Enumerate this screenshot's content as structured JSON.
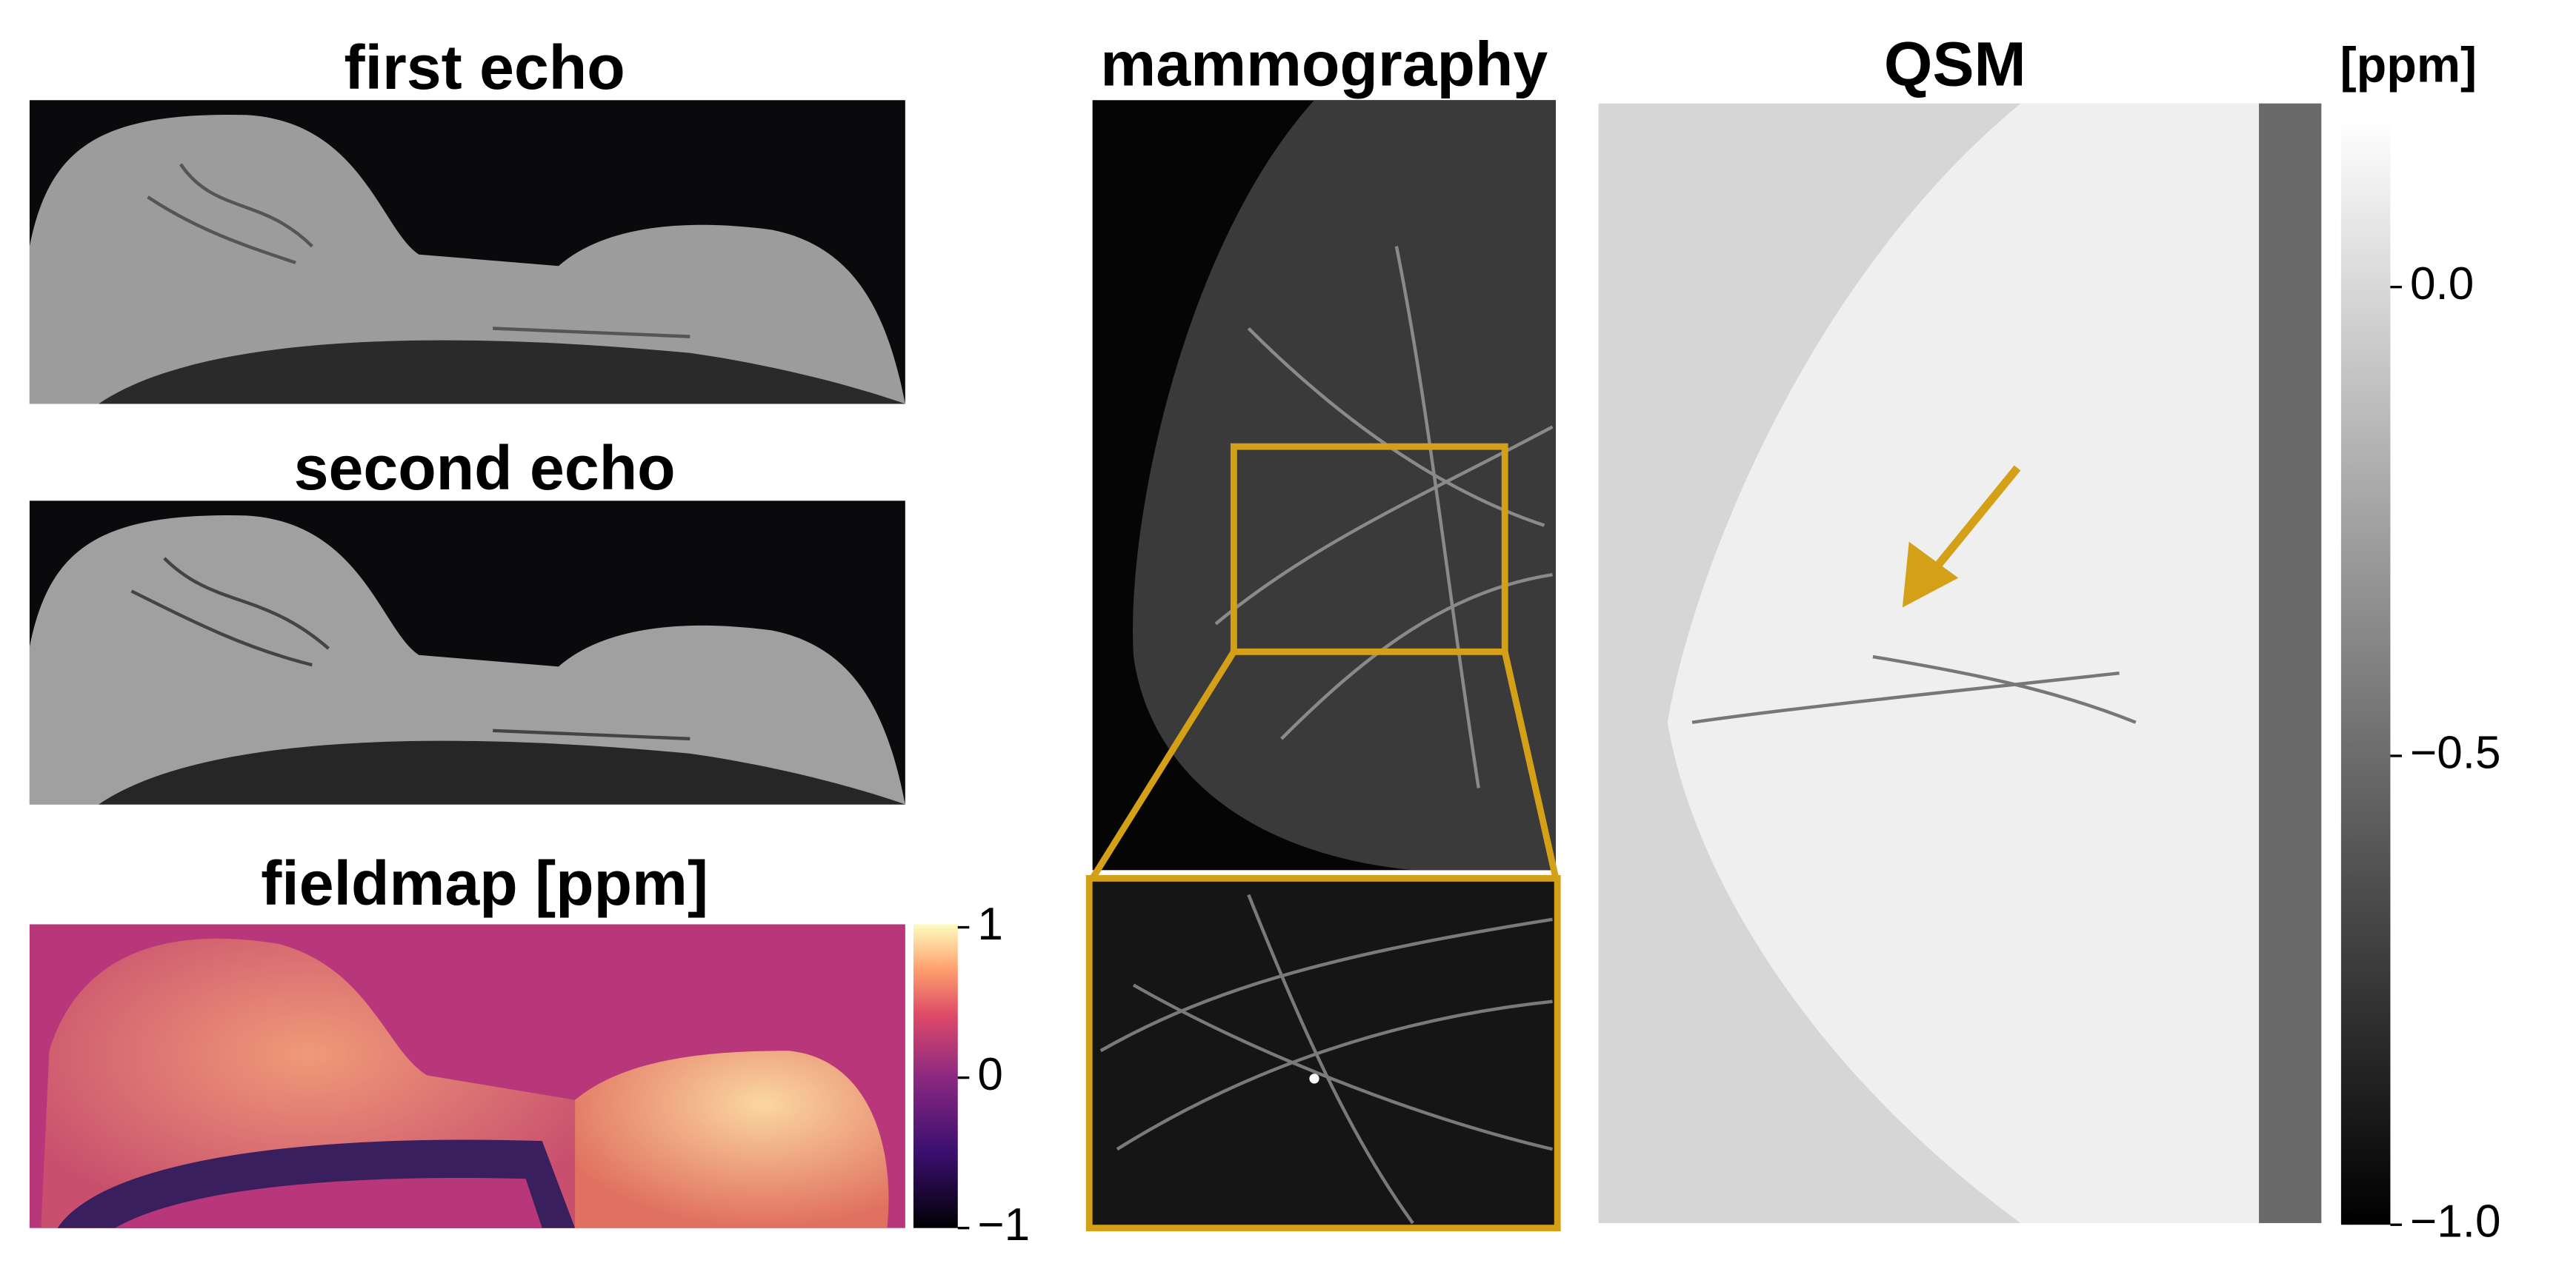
{
  "panels": [
    {
      "title": "first echo"
    },
    {
      "title": "second echo"
    },
    {
      "title": "fieldmap [ppm]",
      "colorbar": {
        "lim": [
          -1,
          1.02
        ],
        "ticks": [
          {
            "value": 1,
            "label": "1"
          },
          {
            "value": 0,
            "label": "0"
          },
          {
            "value": -1,
            "label": "−1"
          }
        ]
      }
    },
    {
      "title": "mammography"
    },
    {
      "title": "QSM",
      "colorbar": {
        "label": "[ppm]",
        "lim": [
          -1.0,
          0.18
        ],
        "ticks": [
          {
            "value": 0.0,
            "label": "0.0"
          },
          {
            "value": -0.5,
            "label": "−0.5"
          },
          {
            "value": -1.0,
            "label": "−1.0"
          }
        ]
      }
    }
  ]
}
